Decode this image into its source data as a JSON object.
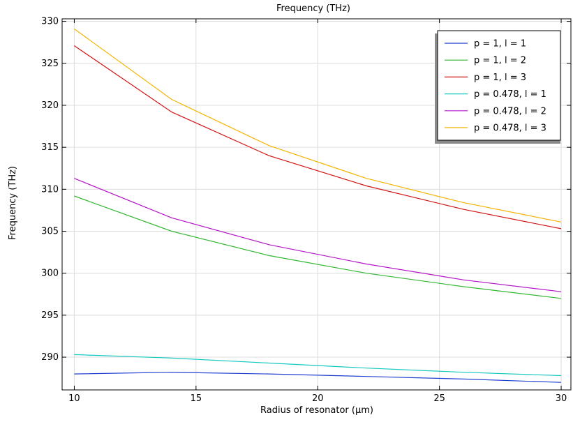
{
  "chart_data": {
    "type": "line",
    "title": "Frequency (THz)",
    "xlabel": "Radius of resonator (µm)",
    "ylabel": "Frequency (THz)",
    "xlim": [
      9.5,
      30.4
    ],
    "ylim": [
      286.1,
      330.3
    ],
    "xticks": [
      10,
      15,
      20,
      25,
      30
    ],
    "yticks": [
      290,
      295,
      300,
      305,
      310,
      315,
      320,
      325,
      330
    ],
    "grid": true,
    "legend_position": "top-right",
    "series": [
      {
        "name": "p = 1, l = 1",
        "color": "#1f3fd0",
        "x": [
          10,
          14,
          18,
          22,
          26,
          30
        ],
        "y": [
          288.0,
          288.2,
          288.0,
          287.7,
          287.4,
          287.0
        ]
      },
      {
        "name": "p = 1, l = 2",
        "color": "#33b833",
        "x": [
          10,
          14,
          18,
          22,
          26,
          30
        ],
        "y": [
          309.2,
          305.0,
          302.1,
          300.0,
          298.4,
          297.0
        ]
      },
      {
        "name": "p = 1, l = 3",
        "color": "#d21414",
        "x": [
          10,
          14,
          18,
          22,
          26,
          30
        ],
        "y": [
          327.1,
          319.2,
          314.0,
          310.4,
          307.6,
          305.3
        ]
      },
      {
        "name": "p = 0.478, l = 1",
        "color": "#16c8c0",
        "x": [
          10,
          14,
          18,
          22,
          26,
          30
        ],
        "y": [
          290.3,
          289.9,
          289.3,
          288.7,
          288.2,
          287.8
        ]
      },
      {
        "name": "p = 0.478, l = 2",
        "color": "#b414c8",
        "x": [
          10,
          14,
          18,
          22,
          26,
          30
        ],
        "y": [
          311.3,
          306.6,
          303.4,
          301.1,
          299.2,
          297.8
        ]
      },
      {
        "name": "p = 0.478, l = 3",
        "color": "#f5b400",
        "x": [
          10,
          14,
          18,
          22,
          26,
          30
        ],
        "y": [
          329.1,
          320.7,
          315.2,
          311.3,
          308.4,
          306.1
        ]
      }
    ]
  }
}
